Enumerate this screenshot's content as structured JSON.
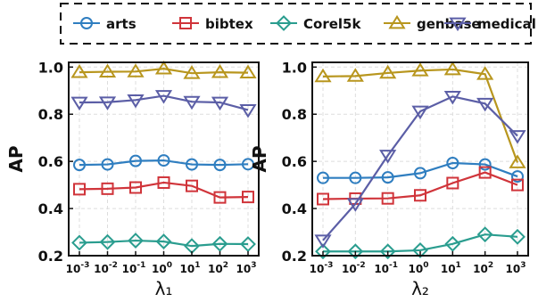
{
  "legend": {
    "position": "top",
    "entries": [
      {
        "name": "arts",
        "color": "#2f7ec0",
        "marker": "circle"
      },
      {
        "name": "bibtex",
        "color": "#d0343a",
        "marker": "square"
      },
      {
        "name": "Corel5k",
        "color": "#2a9d8f",
        "marker": "diamond"
      },
      {
        "name": "genbase",
        "color": "#b8961e",
        "marker": "triangle-up"
      },
      {
        "name": "medical",
        "color": "#5b5ea6",
        "marker": "triangle-down"
      }
    ]
  },
  "chart_data": [
    {
      "type": "line",
      "xlabel": "λ₁",
      "ylabel": "AP",
      "x_ticks": [
        "10^-3",
        "10^-2",
        "10^-1",
        "10^0",
        "10^1",
        "10^2",
        "10^3"
      ],
      "y_ticks": [
        "0.2",
        "0.4",
        "0.6",
        "0.8",
        "1.0"
      ],
      "ylim": [
        0.2,
        1.02
      ],
      "grid": true,
      "series": [
        {
          "name": "arts",
          "values": [
            0.585,
            0.587,
            0.602,
            0.604,
            0.587,
            0.585,
            0.588
          ]
        },
        {
          "name": "bibtex",
          "values": [
            0.482,
            0.484,
            0.489,
            0.51,
            0.496,
            0.447,
            0.449
          ]
        },
        {
          "name": "Corel5k",
          "values": [
            0.255,
            0.258,
            0.264,
            0.26,
            0.241,
            0.25,
            0.249
          ]
        },
        {
          "name": "genbase",
          "values": [
            0.978,
            0.98,
            0.981,
            0.993,
            0.974,
            0.978,
            0.976
          ]
        },
        {
          "name": "medical",
          "values": [
            0.85,
            0.851,
            0.86,
            0.878,
            0.853,
            0.85,
            0.818
          ]
        }
      ]
    },
    {
      "type": "line",
      "xlabel": "λ₂",
      "ylabel": "AP",
      "x_ticks": [
        "10^-3",
        "10^-2",
        "10^-1",
        "10^0",
        "10^1",
        "10^2",
        "10^3"
      ],
      "y_ticks": [
        "0.2",
        "0.4",
        "0.6",
        "0.8",
        "1.0"
      ],
      "ylim": [
        0.2,
        1.02
      ],
      "grid": true,
      "series": [
        {
          "name": "arts",
          "values": [
            0.53,
            0.53,
            0.532,
            0.55,
            0.593,
            0.587,
            0.536
          ]
        },
        {
          "name": "bibtex",
          "values": [
            0.44,
            0.442,
            0.443,
            0.456,
            0.508,
            0.553,
            0.5
          ]
        },
        {
          "name": "Corel5k",
          "values": [
            0.218,
            0.218,
            0.218,
            0.223,
            0.25,
            0.29,
            0.28
          ]
        },
        {
          "name": "genbase",
          "values": [
            0.96,
            0.962,
            0.975,
            0.985,
            0.99,
            0.97,
            0.595
          ]
        },
        {
          "name": "medical",
          "values": [
            0.265,
            0.42,
            0.625,
            0.812,
            0.875,
            0.845,
            0.708
          ]
        }
      ]
    }
  ]
}
